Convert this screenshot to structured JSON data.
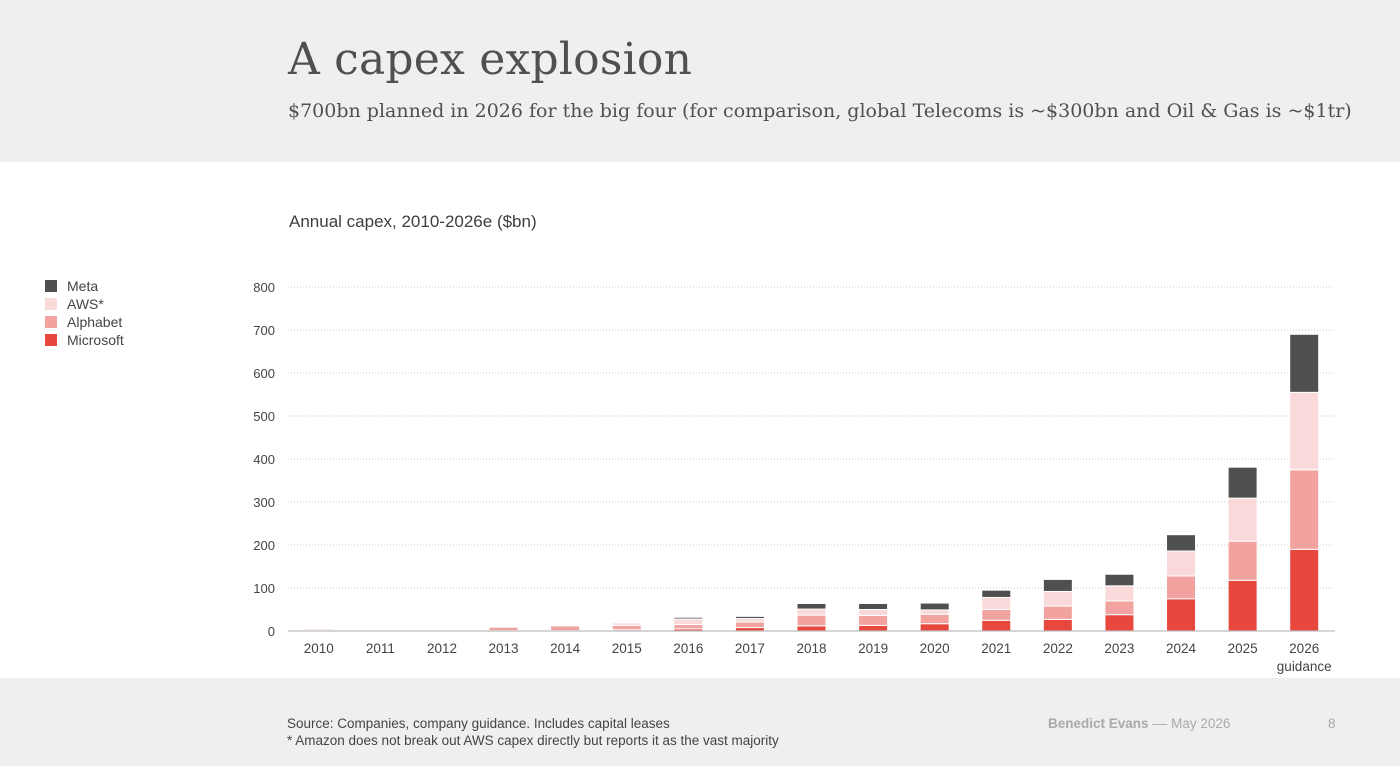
{
  "header": {
    "title": "A capex explosion",
    "subtitle": "$700bn planned in 2026 for the big four (for comparison, global Telecoms is ~$300bn and Oil & Gas is ~$1tr)"
  },
  "footer": {
    "source_line1": "Source: Companies, company guidance. Includes capital leases",
    "source_line2": "*  Amazon does not break out AWS capex directly but reports it as the vast majority",
    "author": "Benedict Evans",
    "separator": "––",
    "date": "May 2026",
    "page_number": "8"
  },
  "colors": {
    "Meta": "#505050",
    "AWS*": "#f9d9d9",
    "Alphabet": "#f2a29f",
    "Microsoft": "#e8473e"
  },
  "chart_data": {
    "type": "bar",
    "stacked": true,
    "title": "Annual capex, 2010-2026e ($bn)",
    "xlabel": "",
    "ylabel": "",
    "ylim": [
      0,
      800
    ],
    "yticks": [
      0,
      100,
      200,
      300,
      400,
      500,
      600,
      700,
      800
    ],
    "grid": true,
    "legend_position": "left",
    "legend_order": [
      "Meta",
      "AWS*",
      "Alphabet",
      "Microsoft"
    ],
    "categories": [
      "2010",
      "2011",
      "2012",
      "2013",
      "2014",
      "2015",
      "2016",
      "2017",
      "2018",
      "2019",
      "2020",
      "2021",
      "2022",
      "2023",
      "2024",
      "2025",
      "2026"
    ],
    "category_sublabels": {
      "2026": "guidance"
    },
    "series": [
      {
        "name": "Microsoft",
        "values": [
          1.5,
          1,
          1,
          1,
          1,
          3,
          5,
          8,
          12,
          13,
          17,
          25,
          27,
          38,
          75,
          118,
          190
        ]
      },
      {
        "name": "Alphabet",
        "values": [
          3,
          1,
          1,
          8,
          11,
          10,
          10,
          13,
          25,
          23,
          22,
          25,
          31,
          32,
          53,
          91,
          185
        ]
      },
      {
        "name": "AWS*",
        "values": [
          1,
          0.5,
          0.5,
          1,
          2,
          6,
          13,
          8,
          14,
          14,
          10,
          28,
          34,
          35,
          58,
          100,
          180
        ]
      },
      {
        "name": "Meta",
        "values": [
          0,
          0,
          0,
          0,
          0,
          2,
          4,
          5,
          13,
          14,
          16,
          17,
          28,
          27,
          38,
          72,
          135
        ]
      }
    ]
  }
}
